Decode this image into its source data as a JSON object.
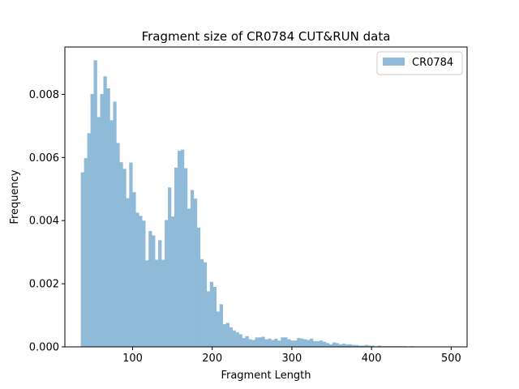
{
  "chart_data": {
    "type": "bar",
    "title": "Fragment size of CR0784 CUT&RUN data",
    "xlabel": "Fragment Length",
    "ylabel": "Frequency",
    "xlim": [
      15,
      520
    ],
    "ylim": [
      0,
      0.0095
    ],
    "xticks": [
      100,
      200,
      300,
      400,
      500
    ],
    "xtick_labels": [
      "100",
      "200",
      "300",
      "400",
      "500"
    ],
    "yticks": [
      0.0,
      0.002,
      0.004,
      0.006,
      0.008
    ],
    "ytick_labels": [
      "0.000",
      "0.002",
      "0.004",
      "0.006",
      "0.008"
    ],
    "bin_start": 35,
    "bin_width": 4.05,
    "legend_position": "upper right",
    "grid": false,
    "series": [
      {
        "name": "CR0784",
        "color": "#8fbbd9",
        "values": [
          0.00553,
          0.00598,
          0.00677,
          0.00801,
          0.00908,
          0.00728,
          0.00801,
          0.00857,
          0.00819,
          0.00718,
          0.00777,
          0.00646,
          0.00585,
          0.00564,
          0.00471,
          0.00584,
          0.0049,
          0.00425,
          0.00415,
          0.004,
          0.00274,
          0.00367,
          0.00353,
          0.00276,
          0.00338,
          0.00276,
          0.00402,
          0.00505,
          0.00413,
          0.00568,
          0.00621,
          0.00625,
          0.00566,
          0.00438,
          0.00497,
          0.0047,
          0.00378,
          0.00278,
          0.00268,
          0.00176,
          0.00206,
          0.0019,
          0.00112,
          0.00135,
          0.00072,
          0.00076,
          0.00062,
          0.00052,
          0.00046,
          0.0004,
          0.00028,
          0.00034,
          0.00024,
          0.00022,
          0.0003,
          0.0003,
          0.00032,
          0.00024,
          0.00026,
          0.00022,
          0.00026,
          0.0002,
          0.0003,
          0.0003,
          0.00024,
          0.0002,
          0.0002,
          0.00028,
          0.00026,
          0.00024,
          0.00022,
          0.00026,
          0.00018,
          0.00018,
          0.0002,
          0.00016,
          0.00012,
          8e-05,
          0.00014,
          0.00012,
          8e-05,
          0.0001,
          8e-05,
          8e-05,
          6e-05,
          6e-05,
          4e-05,
          4e-05,
          6e-05,
          4e-05,
          4e-05,
          2e-05,
          4e-05,
          2e-05,
          2e-05,
          2e-05,
          2e-05,
          2e-05,
          2e-05,
          2e-05,
          2e-05,
          1e-05,
          2e-05,
          1e-05,
          1e-05,
          1e-05,
          1e-05,
          1e-05,
          1e-05,
          1e-05,
          1e-05,
          1e-05,
          1e-05,
          1e-05,
          1e-05
        ]
      }
    ]
  }
}
